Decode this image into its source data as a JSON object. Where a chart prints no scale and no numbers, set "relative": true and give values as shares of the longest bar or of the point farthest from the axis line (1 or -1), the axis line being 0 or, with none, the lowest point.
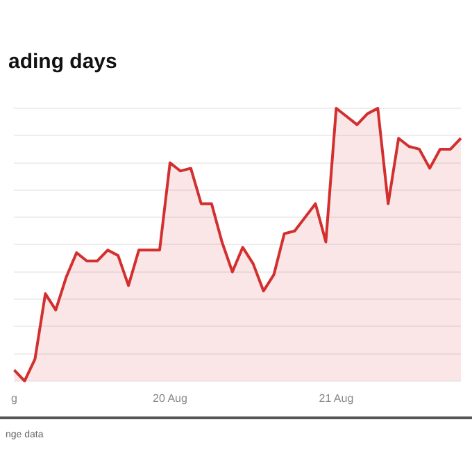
{
  "chart_data": {
    "type": "area",
    "title": "ading days",
    "relative": true,
    "categories": [
      "g",
      null,
      null,
      null,
      null,
      null,
      null,
      null,
      null,
      null,
      null,
      null,
      null,
      null,
      null,
      "20 Aug",
      null,
      null,
      null,
      null,
      null,
      null,
      null,
      null,
      null,
      null,
      null,
      null,
      null,
      null,
      null,
      "21 Aug",
      null,
      null,
      null,
      null,
      null,
      null,
      null,
      null,
      null,
      null,
      null,
      null
    ],
    "series": [
      {
        "color": "#d32f2f",
        "values": [
          0.04,
          0,
          0.08,
          0.32,
          0.26,
          0.38,
          0.47,
          0.44,
          0.44,
          0.48,
          0.46,
          0.35,
          0.48,
          0.48,
          0.48,
          0.8,
          0.77,
          0.78,
          0.65,
          0.65,
          0.51,
          0.4,
          0.49,
          0.43,
          0.33,
          0.39,
          0.54,
          0.55,
          0.6,
          0.65,
          0.51,
          1,
          0.97,
          0.94,
          0.98,
          1,
          0.65,
          0.89,
          0.86,
          0.85,
          0.78,
          0.85,
          0.85,
          0.89
        ]
      }
    ],
    "annotations": [
      "nge data"
    ],
    "legend": false,
    "grid": "y"
  }
}
